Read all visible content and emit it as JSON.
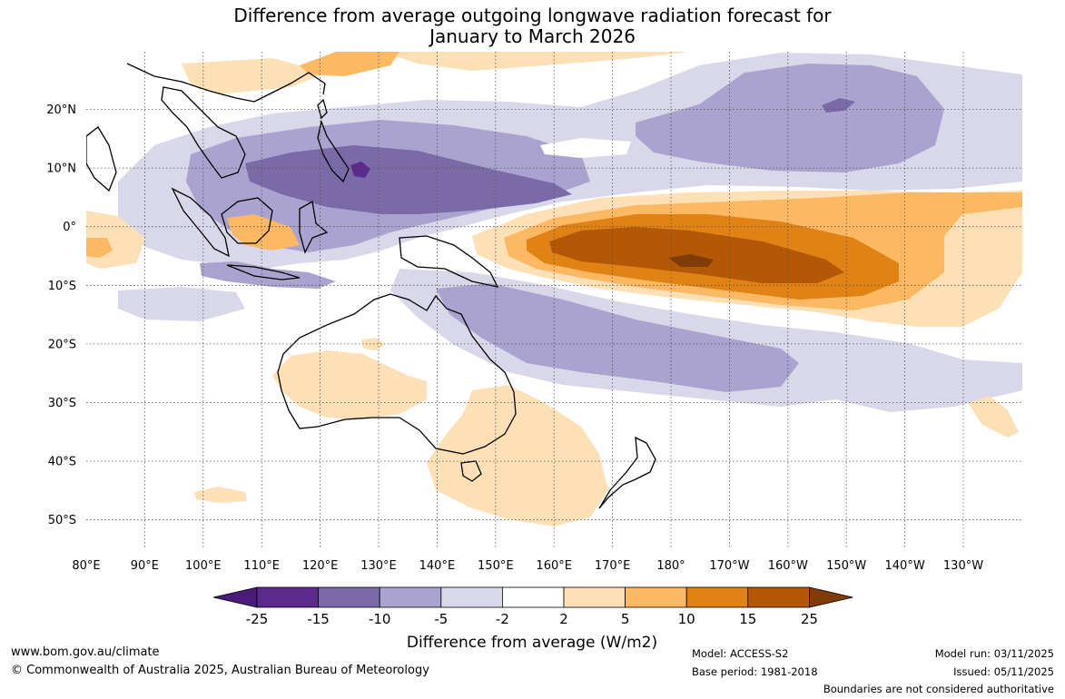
{
  "title": {
    "line1": "Difference from average outgoing longwave radiation forecast for",
    "line2": "January to March 2026"
  },
  "map": {
    "lon_labels": [
      "80°E",
      "90°E",
      "100°E",
      "110°E",
      "120°E",
      "130°E",
      "140°E",
      "150°E",
      "160°E",
      "170°E",
      "180°",
      "170°W",
      "160°W",
      "150°W",
      "140°W",
      "130°W"
    ],
    "lat_labels": [
      "20°N",
      "10°N",
      "0°",
      "10°S",
      "20°S",
      "30°S",
      "40°S",
      "50°S"
    ]
  },
  "colorbar": {
    "ticks": [
      "-25",
      "-15",
      "-10",
      "-5",
      "-2",
      "2",
      "5",
      "10",
      "15",
      "25"
    ],
    "colors": [
      "#4a1b78",
      "#5b2a8c",
      "#7a6aa8",
      "#aaa3cf",
      "#d8d8ea",
      "#ffffff",
      "#fde0b6",
      "#fdb863",
      "#e08214",
      "#b35806",
      "#7f3b08"
    ],
    "label": "Difference from average (W/m2)"
  },
  "footer": {
    "website": "www.bom.gov.au/climate",
    "copyright": "© Commonwealth of Australia 2025, Australian Bureau of Meteorology",
    "model": "Model: ACCESS-S2",
    "base_period": "Base period: 1981-2018",
    "model_run": "Model run: 03/11/2025",
    "issued": "Issued: 05/11/2025",
    "boundaries": "Boundaries are not considered authoritative"
  }
}
